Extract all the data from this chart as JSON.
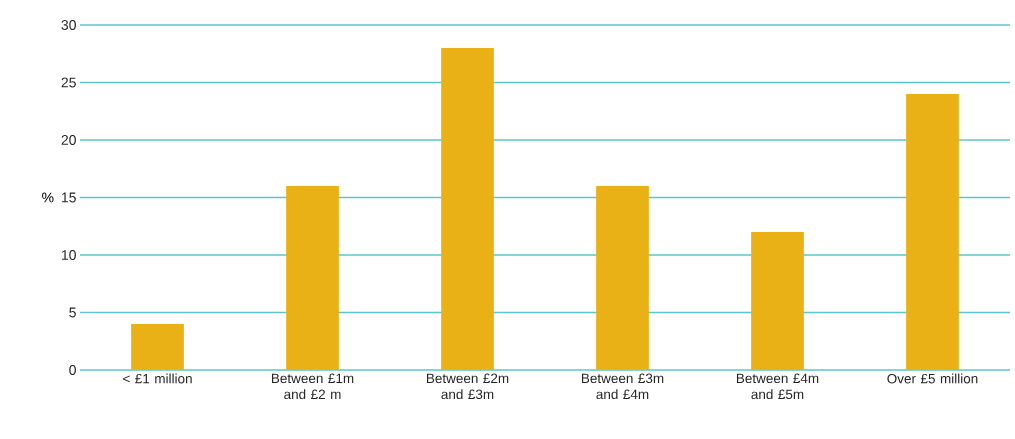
{
  "chart_data": {
    "type": "bar",
    "ylabel": "%",
    "categories": [
      "< £1 million",
      "Between £1m and £2 m",
      "Between £2m and £3m",
      "Between £3m and £4m",
      "Between £4m and £5m",
      "Over £5 million"
    ],
    "values": [
      4,
      16,
      28,
      16,
      12,
      24
    ],
    "color": "#e9b115",
    "ylim": [
      0,
      30
    ],
    "yticks": [
      0,
      5,
      10,
      15,
      20,
      25,
      30
    ],
    "grid": "y"
  }
}
